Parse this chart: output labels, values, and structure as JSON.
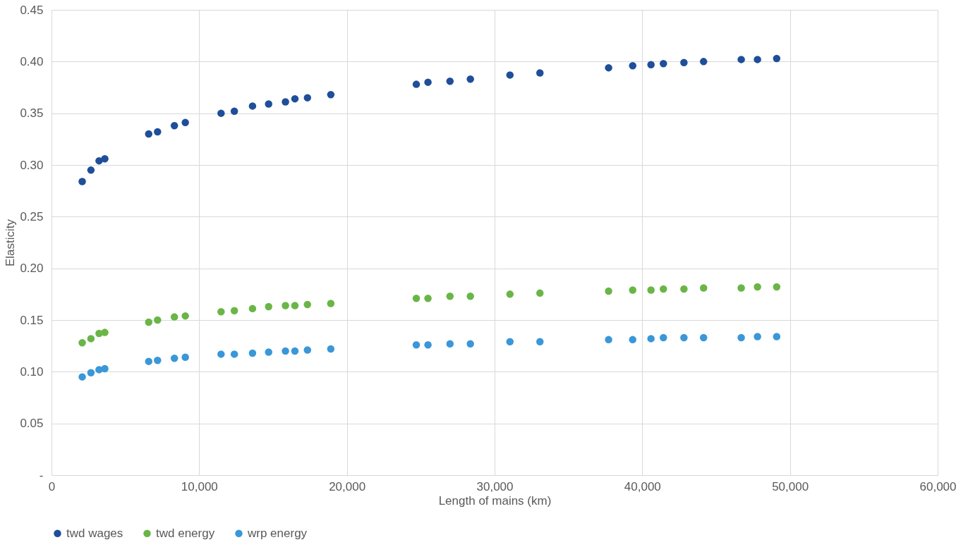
{
  "chart_data": {
    "type": "scatter",
    "xlabel": "Length of mains (km)",
    "ylabel": "Elasticity",
    "x": [
      2080,
      2670,
      3220,
      3610,
      6580,
      7180,
      8320,
      9060,
      11480,
      12380,
      13610,
      14700,
      15840,
      16480,
      17330,
      18910,
      24700,
      25490,
      26980,
      28360,
      31040,
      33070,
      37720,
      39350,
      40590,
      41430,
      42820,
      44150,
      46700,
      47800,
      49100
    ],
    "series": [
      {
        "name": "twd wages",
        "color": "#1f4e9a",
        "values": [
          0.284,
          0.295,
          0.304,
          0.306,
          0.33,
          0.332,
          0.338,
          0.341,
          0.35,
          0.352,
          0.357,
          0.359,
          0.361,
          0.364,
          0.365,
          0.368,
          0.378,
          0.38,
          0.381,
          0.383,
          0.387,
          0.389,
          0.394,
          0.396,
          0.397,
          0.398,
          0.399,
          0.4,
          0.402,
          0.402,
          0.403
        ]
      },
      {
        "name": "twd energy",
        "color": "#6ab547",
        "values": [
          0.128,
          0.132,
          0.137,
          0.138,
          0.148,
          0.15,
          0.153,
          0.154,
          0.158,
          0.159,
          0.161,
          0.163,
          0.164,
          0.164,
          0.165,
          0.166,
          0.171,
          0.171,
          0.173,
          0.173,
          0.175,
          0.176,
          0.178,
          0.179,
          0.179,
          0.18,
          0.18,
          0.181,
          0.181,
          0.182,
          0.182
        ]
      },
      {
        "name": "wrp energy",
        "color": "#3a97d8",
        "values": [
          0.095,
          0.099,
          0.102,
          0.103,
          0.11,
          0.111,
          0.113,
          0.114,
          0.117,
          0.117,
          0.118,
          0.119,
          0.12,
          0.12,
          0.121,
          0.122,
          0.126,
          0.126,
          0.127,
          0.127,
          0.129,
          0.129,
          0.131,
          0.131,
          0.132,
          0.133,
          0.133,
          0.133,
          0.133,
          0.134,
          0.134
        ]
      }
    ],
    "xlim": [
      0,
      60000
    ],
    "xticks": [
      0,
      {
        "value": 10000,
        "label": "10,000"
      },
      {
        "value": 20000,
        "label": "20,000"
      },
      {
        "value": 30000,
        "label": "30,000"
      },
      {
        "value": 40000,
        "label": "40,000"
      },
      {
        "value": 50000,
        "label": "50,000"
      },
      {
        "value": 60000,
        "label": "60,000"
      }
    ],
    "ylim": [
      0,
      0.45
    ],
    "yticks": [
      {
        "value": 0,
        "label": "-"
      },
      {
        "value": 0.05,
        "label": "0.05"
      },
      {
        "value": 0.1,
        "label": "0.10"
      },
      {
        "value": 0.15,
        "label": "0.15"
      },
      {
        "value": 0.2,
        "label": "0.20"
      },
      {
        "value": 0.25,
        "label": "0.25"
      },
      {
        "value": 0.3,
        "label": "0.30"
      },
      {
        "value": 0.35,
        "label": "0.35"
      },
      {
        "value": 0.4,
        "label": "0.40"
      },
      {
        "value": 0.45,
        "label": "0.45"
      }
    ],
    "grid": true,
    "legend": "bottom",
    "marker": "circle"
  }
}
